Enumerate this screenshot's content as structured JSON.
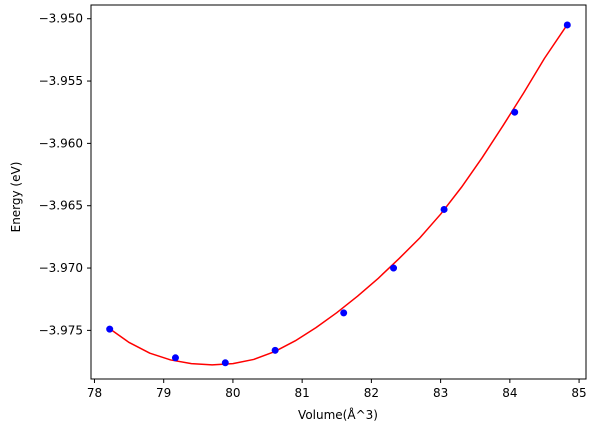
{
  "chart_data": {
    "type": "scatter",
    "xlabel": "Volume(Å^3)",
    "ylabel": "Energy (eV)",
    "xlim": [
      77.95,
      85.1
    ],
    "ylim": [
      -3.9789,
      -3.9489
    ],
    "x_ticks": [
      78,
      79,
      80,
      81,
      82,
      83,
      84,
      85
    ],
    "x_tick_labels": [
      "78",
      "79",
      "80",
      "81",
      "82",
      "83",
      "84",
      "85"
    ],
    "y_ticks": [
      -3.975,
      -3.97,
      -3.965,
      -3.96,
      -3.955,
      -3.95
    ],
    "y_tick_labels": [
      "−3.975",
      "−3.970",
      "−3.965",
      "−3.960",
      "−3.955",
      "−3.950"
    ],
    "grid": false,
    "series": [
      {
        "kind": "scatter",
        "color": "#0000ff",
        "points": [
          {
            "x": 78.22,
            "y": -3.9749
          },
          {
            "x": 79.17,
            "y": -3.9772
          },
          {
            "x": 79.89,
            "y": -3.9776
          },
          {
            "x": 80.61,
            "y": -3.9766
          },
          {
            "x": 81.6,
            "y": -3.9736
          },
          {
            "x": 82.32,
            "y": -3.97
          },
          {
            "x": 83.05,
            "y": -3.9653
          },
          {
            "x": 84.07,
            "y": -3.9575
          },
          {
            "x": 84.83,
            "y": -3.9505
          }
        ]
      },
      {
        "kind": "line",
        "color": "#ff0000",
        "points": [
          {
            "x": 78.22,
            "y": -3.97487
          },
          {
            "x": 78.5,
            "y": -3.97597
          },
          {
            "x": 78.8,
            "y": -3.97683
          },
          {
            "x": 79.1,
            "y": -3.97737
          },
          {
            "x": 79.4,
            "y": -3.97767
          },
          {
            "x": 79.7,
            "y": -3.97777
          },
          {
            "x": 80.0,
            "y": -3.97767
          },
          {
            "x": 80.3,
            "y": -3.97733
          },
          {
            "x": 80.6,
            "y": -3.97671
          },
          {
            "x": 80.9,
            "y": -3.97584
          },
          {
            "x": 81.2,
            "y": -3.97478
          },
          {
            "x": 81.5,
            "y": -3.97358
          },
          {
            "x": 81.8,
            "y": -3.97226
          },
          {
            "x": 82.1,
            "y": -3.97082
          },
          {
            "x": 82.4,
            "y": -3.96924
          },
          {
            "x": 82.7,
            "y": -3.96758
          },
          {
            "x": 83.0,
            "y": -3.96568
          },
          {
            "x": 83.3,
            "y": -3.96353
          },
          {
            "x": 83.6,
            "y": -3.96115
          },
          {
            "x": 83.9,
            "y": -3.95859
          },
          {
            "x": 84.2,
            "y": -3.95595
          },
          {
            "x": 84.5,
            "y": -3.95318
          },
          {
            "x": 84.83,
            "y": -3.95047
          }
        ]
      }
    ]
  }
}
